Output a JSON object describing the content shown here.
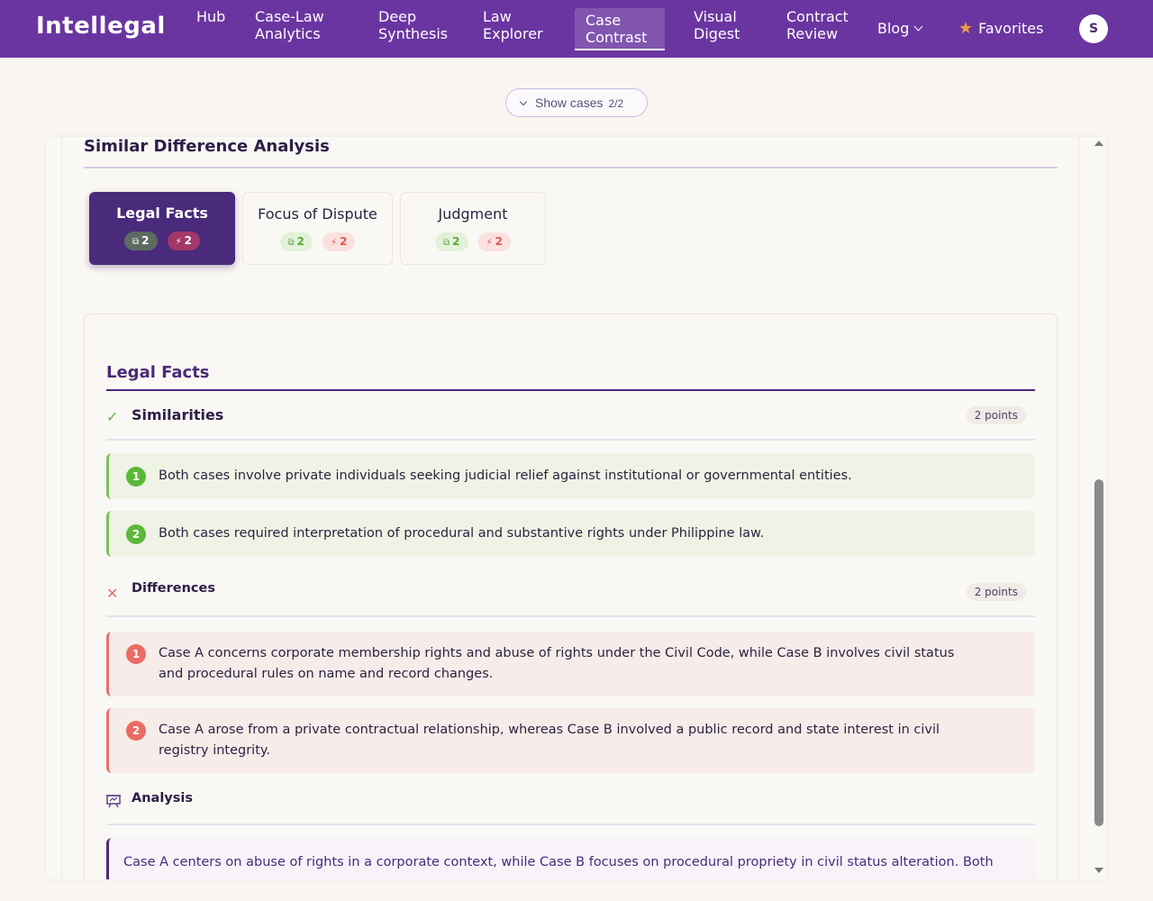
{
  "nav": {
    "logo": "Intellegal",
    "items": [
      {
        "label": "Hub",
        "active": false
      },
      {
        "label": "Case-Law Analytics",
        "active": false
      },
      {
        "label": "Deep Synthesis",
        "active": false
      },
      {
        "label": "Law Explorer",
        "active": false
      },
      {
        "label": "Case Contrast",
        "active": true
      },
      {
        "label": "Visual Digest",
        "active": false
      },
      {
        "label": "Contract Review",
        "active": false
      }
    ],
    "blog_label": "Blog",
    "favorites_label": "Favorites",
    "avatar_initial": "S"
  },
  "show_cases": {
    "label": "Show cases",
    "count": "2/2"
  },
  "panel": {
    "title": "Similar Difference Analysis",
    "tabs": [
      {
        "label": "Legal Facts",
        "similarities": "2",
        "differences": "2",
        "active": true
      },
      {
        "label": "Focus of Dispute",
        "similarities": "2",
        "differences": "2",
        "active": false
      },
      {
        "label": "Judgment",
        "similarities": "2",
        "differences": "2",
        "active": false
      }
    ]
  },
  "section": {
    "title": "Legal Facts",
    "similarities": {
      "title": "Similarities",
      "count": "2 points",
      "items": [
        {
          "n": "1",
          "text": "Both cases involve private individuals seeking judicial relief against institutional or governmental entities."
        },
        {
          "n": "2",
          "text": "Both cases required interpretation of procedural and substantive rights under Philippine law."
        }
      ]
    },
    "differences": {
      "title": "Differences",
      "count": "2 points",
      "items": [
        {
          "n": "1",
          "text": "Case A concerns corporate membership rights and abuse of rights under the Civil Code, while Case B involves civil status and procedural rules on name and record changes."
        },
        {
          "n": "2",
          "text": "Case A arose from a private contractual relationship, whereas Case B involved a public record and state interest in civil registry integrity."
        }
      ]
    },
    "analysis": {
      "title": "Analysis",
      "text": "Case A centers on abuse of rights in a corporate context, while Case B focuses on procedural propriety in civil status alteration. Both"
    }
  },
  "colors": {
    "brand": "#6a35a0",
    "accent_dark": "#4a2a7a",
    "similarity": "#5cb83a",
    "difference": "#ea6b63",
    "favorites_star": "#f59a3c"
  },
  "icons": {
    "similarity_check": "check-icon",
    "difference_x": "x-icon",
    "analysis": "presentation-icon",
    "similar_badge": "overlap-icon",
    "different_badge": "split-icon"
  }
}
